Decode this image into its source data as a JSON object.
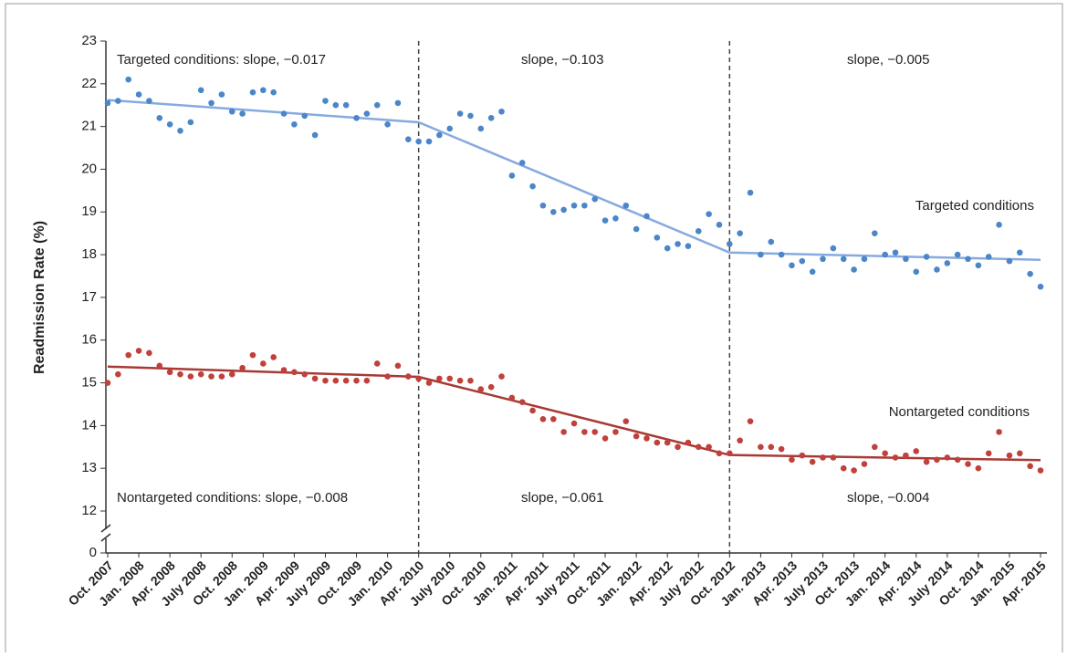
{
  "chart_data": {
    "type": "scatter",
    "y_label": "Readmission Rate (%)",
    "categories": [
      "Oct. 2007",
      null,
      null,
      "Jan. 2008",
      null,
      null,
      "Apr. 2008",
      null,
      null,
      "July 2008",
      null,
      null,
      "Oct. 2008",
      null,
      null,
      "Jan. 2009",
      null,
      null,
      "Apr. 2009",
      null,
      null,
      "July 2009",
      null,
      null,
      "Oct. 2009",
      null,
      null,
      "Jan. 2010",
      null,
      null,
      "Apr. 2010",
      null,
      null,
      "July 2010",
      null,
      null,
      "Oct. 2010",
      null,
      null,
      "Jan. 2011",
      null,
      null,
      "Apr. 2011",
      null,
      null,
      "July 2011",
      null,
      null,
      "Oct. 2011",
      null,
      null,
      "Jan. 2012",
      null,
      null,
      "Apr. 2012",
      null,
      null,
      "July 2012",
      null,
      null,
      "Oct. 2012",
      null,
      null,
      "Jan. 2013",
      null,
      null,
      "Apr. 2013",
      null,
      null,
      "July 2013",
      null,
      null,
      "Oct. 2013",
      null,
      null,
      "Jan. 2014",
      null,
      null,
      "Apr. 2014",
      null,
      null,
      "July 2014",
      null,
      null,
      "Oct. 2014",
      null,
      null,
      "Jan. 2015",
      null,
      null,
      "Apr. 2015"
    ],
    "series": [
      {
        "name": "Targeted conditions",
        "color": "#4a86c8",
        "trend_color": "#86aae0",
        "values": [
          21.55,
          21.6,
          22.1,
          21.75,
          21.6,
          21.2,
          21.05,
          20.9,
          21.1,
          21.85,
          21.55,
          21.75,
          21.35,
          21.3,
          21.8,
          21.85,
          21.8,
          21.3,
          21.05,
          21.25,
          20.8,
          21.6,
          21.5,
          21.5,
          21.2,
          21.3,
          21.5,
          21.05,
          21.55,
          20.7,
          20.65,
          20.65,
          20.8,
          20.95,
          21.3,
          21.25,
          20.95,
          21.2,
          21.35,
          19.85,
          20.15,
          19.6,
          19.15,
          19.0,
          19.05,
          19.15,
          19.15,
          19.3,
          18.8,
          18.85,
          19.15,
          18.6,
          18.9,
          18.4,
          18.15,
          18.25,
          18.2,
          18.55,
          18.95,
          18.7,
          18.25,
          18.5,
          19.45,
          18.0,
          18.3,
          18.0,
          17.75,
          17.85,
          17.6,
          17.9,
          18.15,
          17.9,
          17.65,
          17.9,
          18.5,
          18.0,
          18.05,
          17.9,
          17.6,
          17.95,
          17.65,
          17.8,
          18.0,
          17.9,
          17.75,
          17.95,
          18.7,
          17.85,
          18.05,
          17.55,
          17.25
        ],
        "trend": {
          "x": [
            "Oct. 2007",
            "Apr. 2010",
            "Oct. 2012",
            "Apr. 2015"
          ],
          "values": [
            21.62,
            21.1,
            18.05,
            17.88
          ]
        }
      },
      {
        "name": "Nontargeted conditions",
        "color": "#c0413b",
        "trend_color": "#a83a35",
        "values": [
          15.0,
          15.2,
          15.65,
          15.75,
          15.7,
          15.4,
          15.25,
          15.2,
          15.15,
          15.2,
          15.15,
          15.15,
          15.2,
          15.35,
          15.65,
          15.45,
          15.6,
          15.3,
          15.25,
          15.2,
          15.1,
          15.05,
          15.05,
          15.05,
          15.05,
          15.05,
          15.45,
          15.15,
          15.4,
          15.15,
          15.1,
          15.0,
          15.1,
          15.1,
          15.05,
          15.05,
          14.85,
          14.9,
          15.15,
          14.65,
          14.55,
          14.35,
          14.15,
          14.15,
          13.85,
          14.05,
          13.85,
          13.85,
          13.7,
          13.85,
          14.1,
          13.75,
          13.7,
          13.6,
          13.6,
          13.5,
          13.6,
          13.5,
          13.5,
          13.35,
          13.35,
          13.65,
          14.1,
          13.5,
          13.5,
          13.45,
          13.2,
          13.3,
          13.15,
          13.25,
          13.25,
          13.0,
          12.95,
          13.1,
          13.5,
          13.35,
          13.25,
          13.3,
          13.4,
          13.15,
          13.2,
          13.25,
          13.2,
          13.1,
          13.0,
          13.35,
          13.85,
          13.3,
          13.35,
          13.05,
          12.95
        ],
        "trend": {
          "x": [
            "Oct. 2007",
            "Apr. 2010",
            "Oct. 2012",
            "Apr. 2015"
          ],
          "values": [
            15.38,
            15.14,
            13.31,
            13.19
          ]
        }
      }
    ],
    "breakpoints": [
      "Apr. 2010",
      "Oct. 2012"
    ],
    "annotations": [
      "Targeted conditions: slope, −0.017",
      "slope, −0.103",
      "slope, −0.005",
      "Nontargeted conditions: slope, −0.008",
      "slope, −0.061",
      "slope, −0.004"
    ],
    "ylim": [
      12,
      23
    ],
    "yticks": [
      0,
      12,
      13,
      14,
      15,
      16,
      17,
      18,
      19,
      20,
      21,
      22,
      23
    ],
    "y_break": true
  }
}
